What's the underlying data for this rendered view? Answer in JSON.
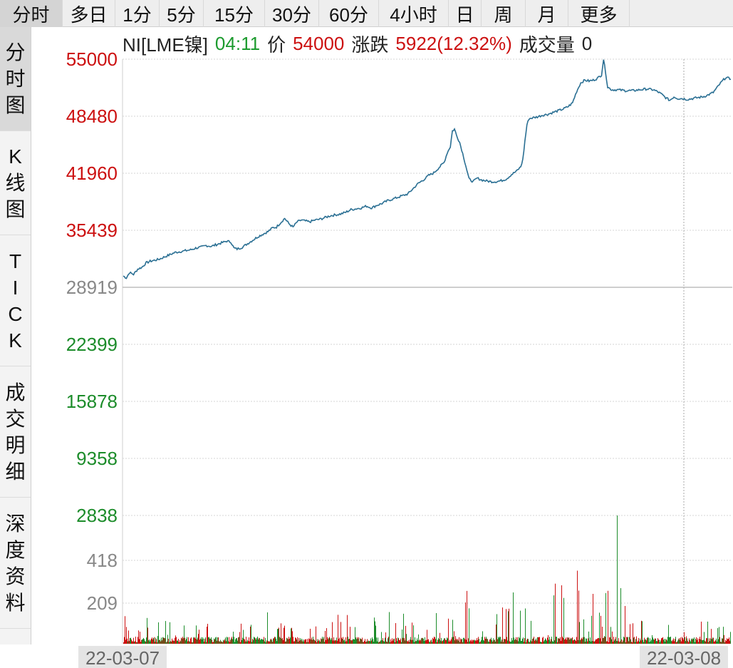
{
  "tabs": [
    {
      "label": "分时",
      "active": true
    },
    {
      "label": "多日"
    },
    {
      "label": "1分"
    },
    {
      "label": "5分"
    },
    {
      "label": "15分"
    },
    {
      "label": "30分"
    },
    {
      "label": "60分"
    },
    {
      "label": "4小时"
    },
    {
      "label": "日"
    },
    {
      "label": "周"
    },
    {
      "label": "月"
    },
    {
      "label": "更多"
    }
  ],
  "sidenav": [
    {
      "label": "分时图",
      "active": true
    },
    {
      "label": "K线图"
    },
    {
      "label": "TICK"
    },
    {
      "label": "成交明细"
    },
    {
      "label": "深度资料"
    }
  ],
  "info": {
    "symbol": "NI[LME镍]",
    "time": "04:11",
    "price_label": "价",
    "price": "54000",
    "change_label": "涨跌",
    "change": "5922(12.32%)",
    "volume_label": "成交量",
    "volume": "0"
  },
  "colors": {
    "line": "#2a6f93",
    "up": "#cc1010",
    "down": "#1c8c2a",
    "base": "#888888",
    "grid": "#d4d4d4"
  },
  "chart_data": {
    "type": "line",
    "price_ticks": [
      55000,
      48480,
      41960,
      35439,
      28919,
      22399,
      15878,
      9358,
      2838
    ],
    "base_price": 28919,
    "volume_ticks": [
      418,
      209
    ],
    "x_labels": [
      "22-03-07",
      "22-03-08"
    ],
    "series": [
      {
        "values": [
          [
            0,
            30200
          ],
          [
            3,
            30000
          ],
          [
            6,
            30600
          ],
          [
            10,
            30400
          ],
          [
            14,
            31000
          ],
          [
            18,
            31200
          ],
          [
            22,
            31700
          ],
          [
            26,
            31900
          ],
          [
            30,
            32000
          ],
          [
            34,
            32100
          ],
          [
            38,
            32300
          ],
          [
            42,
            32500
          ],
          [
            46,
            32700
          ],
          [
            50,
            32900
          ],
          [
            55,
            33000
          ],
          [
            60,
            33100
          ],
          [
            65,
            33200
          ],
          [
            70,
            33400
          ],
          [
            75,
            33500
          ],
          [
            80,
            33700
          ],
          [
            85,
            33600
          ],
          [
            90,
            33800
          ],
          [
            95,
            34000
          ],
          [
            100,
            34200
          ],
          [
            104,
            34100
          ],
          [
            107,
            33400
          ],
          [
            110,
            33300
          ],
          [
            115,
            33500
          ],
          [
            120,
            33900
          ],
          [
            125,
            34300
          ],
          [
            130,
            34700
          ],
          [
            135,
            35000
          ],
          [
            140,
            35300
          ],
          [
            144,
            35700
          ],
          [
            148,
            35800
          ],
          [
            152,
            36300
          ],
          [
            156,
            36800
          ],
          [
            160,
            36200
          ],
          [
            164,
            35800
          ],
          [
            168,
            36400
          ],
          [
            172,
            36600
          ],
          [
            176,
            36500
          ],
          [
            180,
            36400
          ],
          [
            185,
            36600
          ],
          [
            190,
            36700
          ],
          [
            195,
            36900
          ],
          [
            200,
            37100
          ],
          [
            205,
            37200
          ],
          [
            210,
            37300
          ],
          [
            215,
            37500
          ],
          [
            220,
            37800
          ],
          [
            225,
            37900
          ],
          [
            230,
            38000
          ],
          [
            235,
            38200
          ],
          [
            240,
            38000
          ],
          [
            245,
            38300
          ],
          [
            250,
            38500
          ],
          [
            255,
            38800
          ],
          [
            260,
            39000
          ],
          [
            265,
            39200
          ],
          [
            270,
            39400
          ],
          [
            275,
            39600
          ],
          [
            280,
            40200
          ],
          [
            285,
            40800
          ],
          [
            290,
            41200
          ],
          [
            295,
            41700
          ],
          [
            300,
            42000
          ],
          [
            305,
            42600
          ],
          [
            310,
            43200
          ],
          [
            313,
            44300
          ],
          [
            316,
            45000
          ],
          [
            318,
            46800
          ],
          [
            320,
            47000
          ],
          [
            322,
            46300
          ],
          [
            325,
            45500
          ],
          [
            328,
            44200
          ],
          [
            331,
            42800
          ],
          [
            334,
            41300
          ],
          [
            338,
            41000
          ],
          [
            342,
            41400
          ],
          [
            346,
            41200
          ],
          [
            350,
            41100
          ],
          [
            355,
            41000
          ],
          [
            360,
            41000
          ],
          [
            365,
            41100
          ],
          [
            370,
            41300
          ],
          [
            375,
            41800
          ],
          [
            380,
            42200
          ],
          [
            384,
            42700
          ],
          [
            386,
            43500
          ],
          [
            388,
            45600
          ],
          [
            390,
            47500
          ],
          [
            392,
            48200
          ],
          [
            396,
            48300
          ],
          [
            400,
            48400
          ],
          [
            405,
            48600
          ],
          [
            410,
            48700
          ],
          [
            415,
            48900
          ],
          [
            420,
            49100
          ],
          [
            425,
            49300
          ],
          [
            430,
            49600
          ],
          [
            434,
            50000
          ],
          [
            438,
            51300
          ],
          [
            442,
            52300
          ],
          [
            446,
            52600
          ],
          [
            450,
            52500
          ],
          [
            454,
            52600
          ],
          [
            458,
            52800
          ],
          [
            462,
            53200
          ],
          [
            464,
            55000
          ],
          [
            466,
            53500
          ],
          [
            468,
            51800
          ],
          [
            472,
            51500
          ],
          [
            478,
            51500
          ],
          [
            485,
            51400
          ],
          [
            492,
            51400
          ],
          [
            499,
            51500
          ],
          [
            506,
            51600
          ],
          [
            512,
            51500
          ],
          [
            516,
            51300
          ],
          [
            520,
            51000
          ],
          [
            524,
            50600
          ],
          [
            528,
            50300
          ],
          [
            532,
            50700
          ],
          [
            536,
            50500
          ],
          [
            540,
            50500
          ],
          [
            545,
            50400
          ],
          [
            550,
            50500
          ],
          [
            555,
            50600
          ],
          [
            560,
            50700
          ],
          [
            565,
            50900
          ],
          [
            570,
            51200
          ],
          [
            574,
            51800
          ],
          [
            578,
            52400
          ],
          [
            582,
            52900
          ],
          [
            585,
            52800
          ],
          [
            587,
            52700
          ]
        ]
      }
    ]
  }
}
